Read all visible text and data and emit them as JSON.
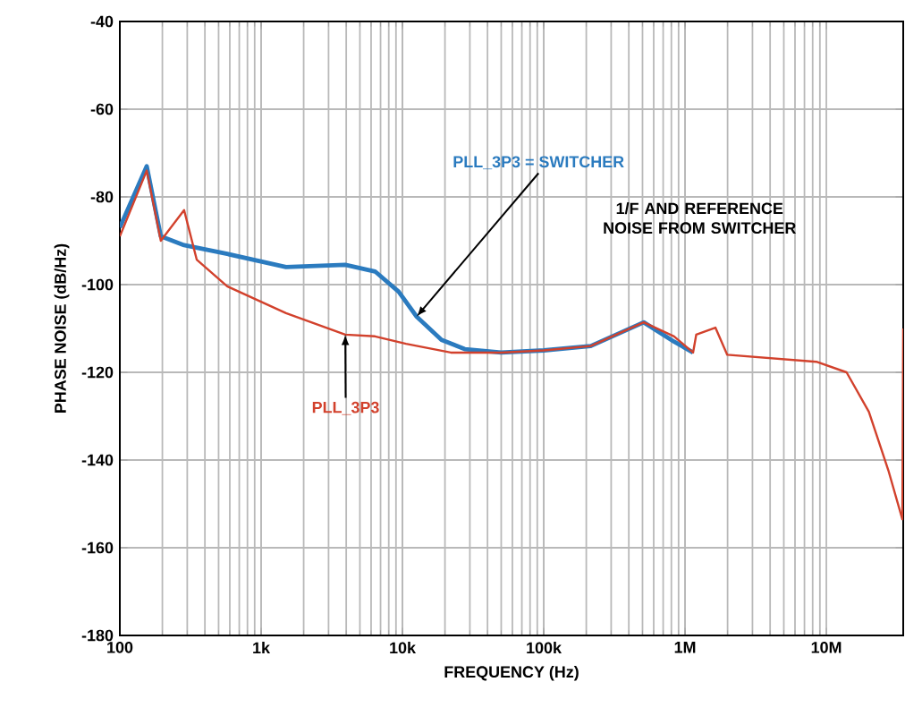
{
  "chart_data": {
    "type": "line",
    "xlabel": "FREQUENCY (Hz)",
    "ylabel": "PHASE NOISE (dB/Hz)",
    "log": "x",
    "grid": true,
    "legend": false,
    "xlim": [
      100,
      35000000
    ],
    "ylim": [
      -180,
      -40
    ],
    "xticks": [
      100,
      {
        "value": 1000,
        "label": "1k"
      },
      {
        "value": 10000,
        "label": "10k"
      },
      {
        "value": 100000,
        "label": "100k"
      },
      {
        "value": 1000000,
        "label": "1M"
      },
      {
        "value": 10000000,
        "label": "10M"
      }
    ],
    "yticks": [
      -40,
      -60,
      -80,
      -100,
      -120,
      -140,
      -160,
      -180
    ],
    "series": [
      {
        "name": "PLL_3P3 = SWITCHER",
        "color": "#2b7bbf",
        "x": [
          100,
          155,
          195,
          285,
          575,
          1500,
          3940,
          6400,
          9400,
          12600,
          18900,
          27600,
          50000,
          100000,
          215000,
          510000,
          836000,
          1140000
        ],
        "values": [
          -87,
          -73,
          -89,
          -91,
          -93,
          -96,
          -95.5,
          -97,
          -101.6,
          -107.3,
          -112.6,
          -114.7,
          -115.5,
          -115,
          -114,
          -108.6,
          -113,
          -115.5
        ]
      },
      {
        "name": "PLL_3P3",
        "color": "#d2412c",
        "x": [
          100,
          155,
          195,
          285,
          350,
          575,
          1500,
          3940,
          6400,
          10600,
          22000,
          50000,
          100000,
          215000,
          510000,
          836000,
          1140000,
          1200000,
          1640000,
          1990000,
          8500000,
          13900000,
          20000000,
          27500000,
          34500000,
          35000000
        ],
        "values": [
          -89,
          -74,
          -90,
          -83,
          -94.3,
          -100.4,
          -106.5,
          -111.4,
          -111.8,
          -113.5,
          -115.5,
          -115.5,
          -115,
          -114,
          -108.6,
          -111.8,
          -115.5,
          -111.4,
          -109.8,
          -116,
          -117.6,
          -120,
          -129,
          -142.4,
          -153.5,
          -110
        ]
      }
    ],
    "annotations": [
      "1/F AND REFERENCE NOISE FROM SWITCHER"
    ]
  }
}
